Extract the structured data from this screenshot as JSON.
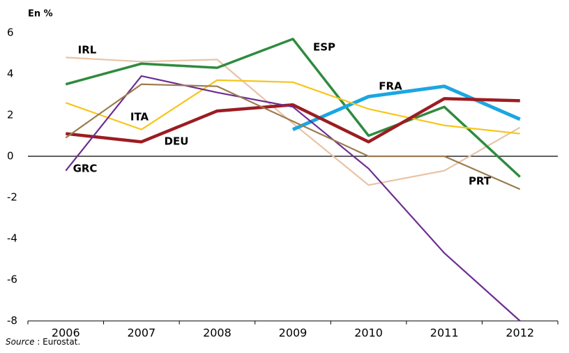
{
  "chart_data": {
    "type": "line",
    "y_label": "En %",
    "source_label": "Source",
    "source": " : Eurostat.",
    "categories": [
      "2006",
      "2007",
      "2008",
      "2009",
      "2010",
      "2011",
      "2012"
    ],
    "ylim": [
      -8,
      6
    ],
    "yticks": [
      -8,
      -6,
      -4,
      -2,
      0,
      2,
      4,
      6
    ],
    "series": [
      {
        "name": "IRL",
        "color": "#e8c3a6",
        "values": [
          4.8,
          4.6,
          4.7,
          1.6,
          -1.4,
          -0.7,
          1.4
        ]
      },
      {
        "name": "ESP",
        "color": "#2e8b3e",
        "values": [
          3.5,
          4.5,
          4.3,
          5.7,
          1.0,
          2.4,
          -1.0
        ]
      },
      {
        "name": "FRA",
        "color": "#1ba6e2",
        "values": [
          null,
          null,
          null,
          1.3,
          2.9,
          3.4,
          1.8
        ]
      },
      {
        "name": "ITA",
        "color": "#f6c51b",
        "values": [
          2.6,
          1.3,
          3.7,
          3.6,
          2.3,
          1.5,
          1.1
        ]
      },
      {
        "name": "DEU",
        "color": "#9b1c22",
        "values": [
          1.1,
          0.7,
          2.2,
          2.5,
          0.7,
          2.8,
          2.7
        ]
      },
      {
        "name": "GRC",
        "color": "#6b2d91",
        "values": [
          -0.7,
          3.9,
          3.1,
          2.4,
          -0.6,
          -4.7,
          -8.0
        ]
      },
      {
        "name": "PRT",
        "color": "#9c7b50",
        "values": [
          0.9,
          3.5,
          3.4,
          1.7,
          0.0,
          0.0,
          -1.6
        ]
      }
    ]
  }
}
